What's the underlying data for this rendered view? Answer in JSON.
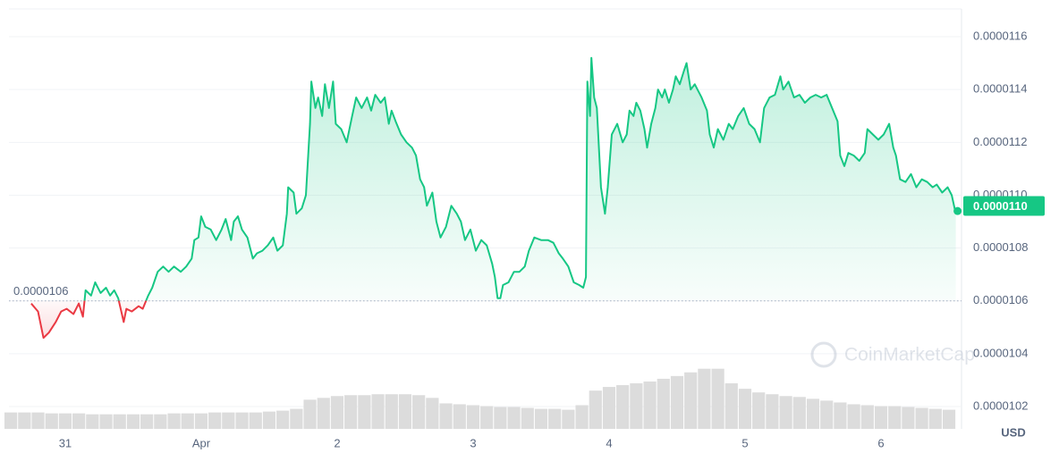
{
  "chart_data": {
    "type": "line",
    "x": [
      -0.25,
      -0.2,
      -0.16,
      -0.12,
      -0.07,
      -0.03,
      0.01,
      0.06,
      0.1,
      0.13,
      0.15,
      0.19,
      0.22,
      0.26,
      0.3,
      0.33,
      0.36,
      0.39,
      0.43,
      0.45,
      0.49,
      0.54,
      0.57,
      0.61,
      0.64,
      0.68,
      0.72,
      0.76,
      0.8,
      0.85,
      0.89,
      0.93,
      0.95,
      0.98,
      1,
      1.03,
      1.07,
      1.11,
      1.15,
      1.18,
      1.22,
      1.24,
      1.27,
      1.3,
      1.34,
      1.38,
      1.41,
      1.45,
      1.49,
      1.53,
      1.56,
      1.6,
      1.63,
      1.64,
      1.68,
      1.7,
      1.74,
      1.77,
      1.8,
      1.81,
      1.84,
      1.86,
      1.89,
      1.91,
      1.94,
      1.97,
      1.99,
      2.03,
      2.07,
      2.11,
      2.14,
      2.18,
      2.22,
      2.25,
      2.28,
      2.32,
      2.35,
      2.38,
      2.4,
      2.43,
      2.47,
      2.51,
      2.55,
      2.58,
      2.61,
      2.64,
      2.66,
      2.7,
      2.73,
      2.76,
      2.8,
      2.84,
      2.88,
      2.91,
      2.94,
      2.98,
      3.02,
      3.06,
      3.1,
      3.14,
      3.16,
      3.18,
      3.2,
      3.22,
      3.26,
      3.3,
      3.34,
      3.38,
      3.41,
      3.45,
      3.5,
      3.55,
      3.59,
      3.63,
      3.66,
      3.7,
      3.74,
      3.78,
      3.81,
      3.83,
      3.84,
      3.86,
      3.87,
      3.89,
      3.91,
      3.94,
      3.97,
      3.99,
      4.02,
      4.06,
      4.1,
      4.13,
      4.15,
      4.18,
      4.2,
      4.23,
      4.26,
      4.28,
      4.31,
      4.34,
      4.36,
      4.39,
      4.41,
      4.44,
      4.47,
      4.49,
      4.52,
      4.55,
      4.57,
      4.6,
      4.63,
      4.65,
      4.68,
      4.72,
      4.74,
      4.77,
      4.8,
      4.84,
      4.88,
      4.91,
      4.95,
      4.99,
      5.03,
      5.07,
      5.11,
      5.14,
      5.18,
      5.22,
      5.26,
      5.28,
      5.32,
      5.36,
      5.4,
      5.44,
      5.48,
      5.52,
      5.56,
      5.6,
      5.64,
      5.68,
      5.7,
      5.73,
      5.76,
      5.8,
      5.84,
      5.88,
      5.9,
      5.94,
      5.98,
      6.02,
      6.06,
      6.09,
      6.11,
      6.14,
      6.18,
      6.22,
      6.26,
      6.3,
      6.34,
      6.38,
      6.41,
      6.45,
      6.49,
      6.52,
      6.55
    ],
    "values": [
      1.059e-05,
      1.056e-05,
      1.046e-05,
      1.048e-05,
      1.052e-05,
      1.056e-05,
      1.057e-05,
      1.055e-05,
      1.059e-05,
      1.054e-05,
      1.064e-05,
      1.062e-05,
      1.067e-05,
      1.063e-05,
      1.065e-05,
      1.062e-05,
      1.064e-05,
      1.061e-05,
      1.052e-05,
      1.057e-05,
      1.056e-05,
      1.058e-05,
      1.057e-05,
      1.062e-05,
      1.065e-05,
      1.071e-05,
      1.073e-05,
      1.071e-05,
      1.073e-05,
      1.071e-05,
      1.073e-05,
      1.076e-05,
      1.083e-05,
      1.084e-05,
      1.092e-05,
      1.088e-05,
      1.087e-05,
      1.083e-05,
      1.087e-05,
      1.091e-05,
      1.083e-05,
      1.09e-05,
      1.092e-05,
      1.087e-05,
      1.084e-05,
      1.076e-05,
      1.078e-05,
      1.079e-05,
      1.081e-05,
      1.084e-05,
      1.079e-05,
      1.081e-05,
      1.093e-05,
      1.103e-05,
      1.101e-05,
      1.093e-05,
      1.095e-05,
      1.1e-05,
      1.127e-05,
      1.143e-05,
      1.133e-05,
      1.137e-05,
      1.13e-05,
      1.142e-05,
      1.133e-05,
      1.143e-05,
      1.127e-05,
      1.125e-05,
      1.12e-05,
      1.13e-05,
      1.137e-05,
      1.133e-05,
      1.137e-05,
      1.132e-05,
      1.138e-05,
      1.135e-05,
      1.137e-05,
      1.127e-05,
      1.132e-05,
      1.128e-05,
      1.123e-05,
      1.12e-05,
      1.118e-05,
      1.115e-05,
      1.106e-05,
      1.103e-05,
      1.096e-05,
      1.101e-05,
      1.09e-05,
      1.084e-05,
      1.088e-05,
      1.096e-05,
      1.093e-05,
      1.09e-05,
      1.083e-05,
      1.087e-05,
      1.079e-05,
      1.083e-05,
      1.081e-05,
      1.074e-05,
      1.069e-05,
      1.061e-05,
      1.061e-05,
      1.066e-05,
      1.067e-05,
      1.071e-05,
      1.071e-05,
      1.073e-05,
      1.079e-05,
      1.084e-05,
      1.083e-05,
      1.083e-05,
      1.082e-05,
      1.078e-05,
      1.076e-05,
      1.073e-05,
      1.067e-05,
      1.066e-05,
      1.065e-05,
      1.069e-05,
      1.143e-05,
      1.13e-05,
      1.152e-05,
      1.137e-05,
      1.133e-05,
      1.103e-05,
      1.093e-05,
      1.103e-05,
      1.123e-05,
      1.127e-05,
      1.12e-05,
      1.123e-05,
      1.132e-05,
      1.13e-05,
      1.135e-05,
      1.132e-05,
      1.125e-05,
      1.118e-05,
      1.127e-05,
      1.133e-05,
      1.14e-05,
      1.137e-05,
      1.14e-05,
      1.135e-05,
      1.14e-05,
      1.145e-05,
      1.142e-05,
      1.147e-05,
      1.15e-05,
      1.14e-05,
      1.142e-05,
      1.14e-05,
      1.137e-05,
      1.132e-05,
      1.123e-05,
      1.118e-05,
      1.125e-05,
      1.121e-05,
      1.127e-05,
      1.125e-05,
      1.13e-05,
      1.133e-05,
      1.127e-05,
      1.125e-05,
      1.12e-05,
      1.133e-05,
      1.137e-05,
      1.138e-05,
      1.145e-05,
      1.14e-05,
      1.143e-05,
      1.137e-05,
      1.138e-05,
      1.135e-05,
      1.137e-05,
      1.138e-05,
      1.137e-05,
      1.138e-05,
      1.133e-05,
      1.128e-05,
      1.115e-05,
      1.111e-05,
      1.116e-05,
      1.115e-05,
      1.113e-05,
      1.116e-05,
      1.125e-05,
      1.123e-05,
      1.121e-05,
      1.123e-05,
      1.127e-05,
      1.118e-05,
      1.115e-05,
      1.106e-05,
      1.105e-05,
      1.108e-05,
      1.103e-05,
      1.106e-05,
      1.105e-05,
      1.103e-05,
      1.104e-05,
      1.101e-05,
      1.103e-05,
      1.1e-05,
      1.093e-05
    ],
    "up_color": "#16c784",
    "down_color": "#ea3943",
    "baseline": 1.06e-05,
    "current_price": {
      "value": 1.1e-05,
      "label": "0.0000110"
    },
    "xlim": [
      -0.414,
      6.592
    ],
    "xticks": [
      {
        "value": 0,
        "label": "31"
      },
      {
        "value": 1,
        "label": "Apr"
      },
      2,
      3,
      4,
      5,
      6
    ],
    "ylim": [
      1.01155e-05,
      1.1705e-05
    ],
    "yticks": [
      1.16e-05,
      1.14e-05,
      1.12e-05,
      {
        "value": 1.1e-05,
        "label": "0.0000110"
      },
      1.08e-05,
      1.06e-05,
      1.04e-05,
      1.02e-05
    ],
    "y_unit": "USD",
    "grid": true,
    "watermark": "CoinMarketCap",
    "volume": {
      "color": "#dcdcdc",
      "x": [
        -0.4,
        -0.3,
        -0.2,
        -0.1,
        0,
        0.1,
        0.2,
        0.3,
        0.4,
        0.5,
        0.6,
        0.7,
        0.8,
        0.9,
        1,
        1.1,
        1.2,
        1.3,
        1.4,
        1.5,
        1.6,
        1.7,
        1.8,
        1.9,
        2,
        2.1,
        2.2,
        2.3,
        2.4,
        2.5,
        2.6,
        2.7,
        2.8,
        2.9,
        3,
        3.1,
        3.2,
        3.3,
        3.4,
        3.5,
        3.6,
        3.7,
        3.8,
        3.9,
        4,
        4.1,
        4.2,
        4.3,
        4.4,
        4.5,
        4.6,
        4.7,
        4.8,
        4.9,
        5,
        5.1,
        5.2,
        5.3,
        5.4,
        5.5,
        5.6,
        5.7,
        5.8,
        5.9,
        6,
        6.1,
        6.2,
        6.3,
        6.4,
        6.5
      ],
      "values": [
        18,
        18,
        18,
        17,
        17,
        17,
        16,
        16,
        16,
        16,
        16,
        16,
        17,
        17,
        17,
        18,
        18,
        18,
        18,
        19,
        20,
        22,
        32,
        34,
        36,
        37,
        37,
        38,
        38,
        38,
        37,
        34,
        28,
        27,
        26,
        25,
        24,
        24,
        23,
        22,
        22,
        21,
        26,
        42,
        46,
        48,
        50,
        52,
        55,
        58,
        62,
        66,
        66,
        50,
        44,
        40,
        38,
        36,
        35,
        33,
        31,
        29,
        27,
        26,
        25,
        25,
        24,
        23,
        22,
        21
      ],
      "vlim": [
        0,
        100
      ]
    }
  }
}
